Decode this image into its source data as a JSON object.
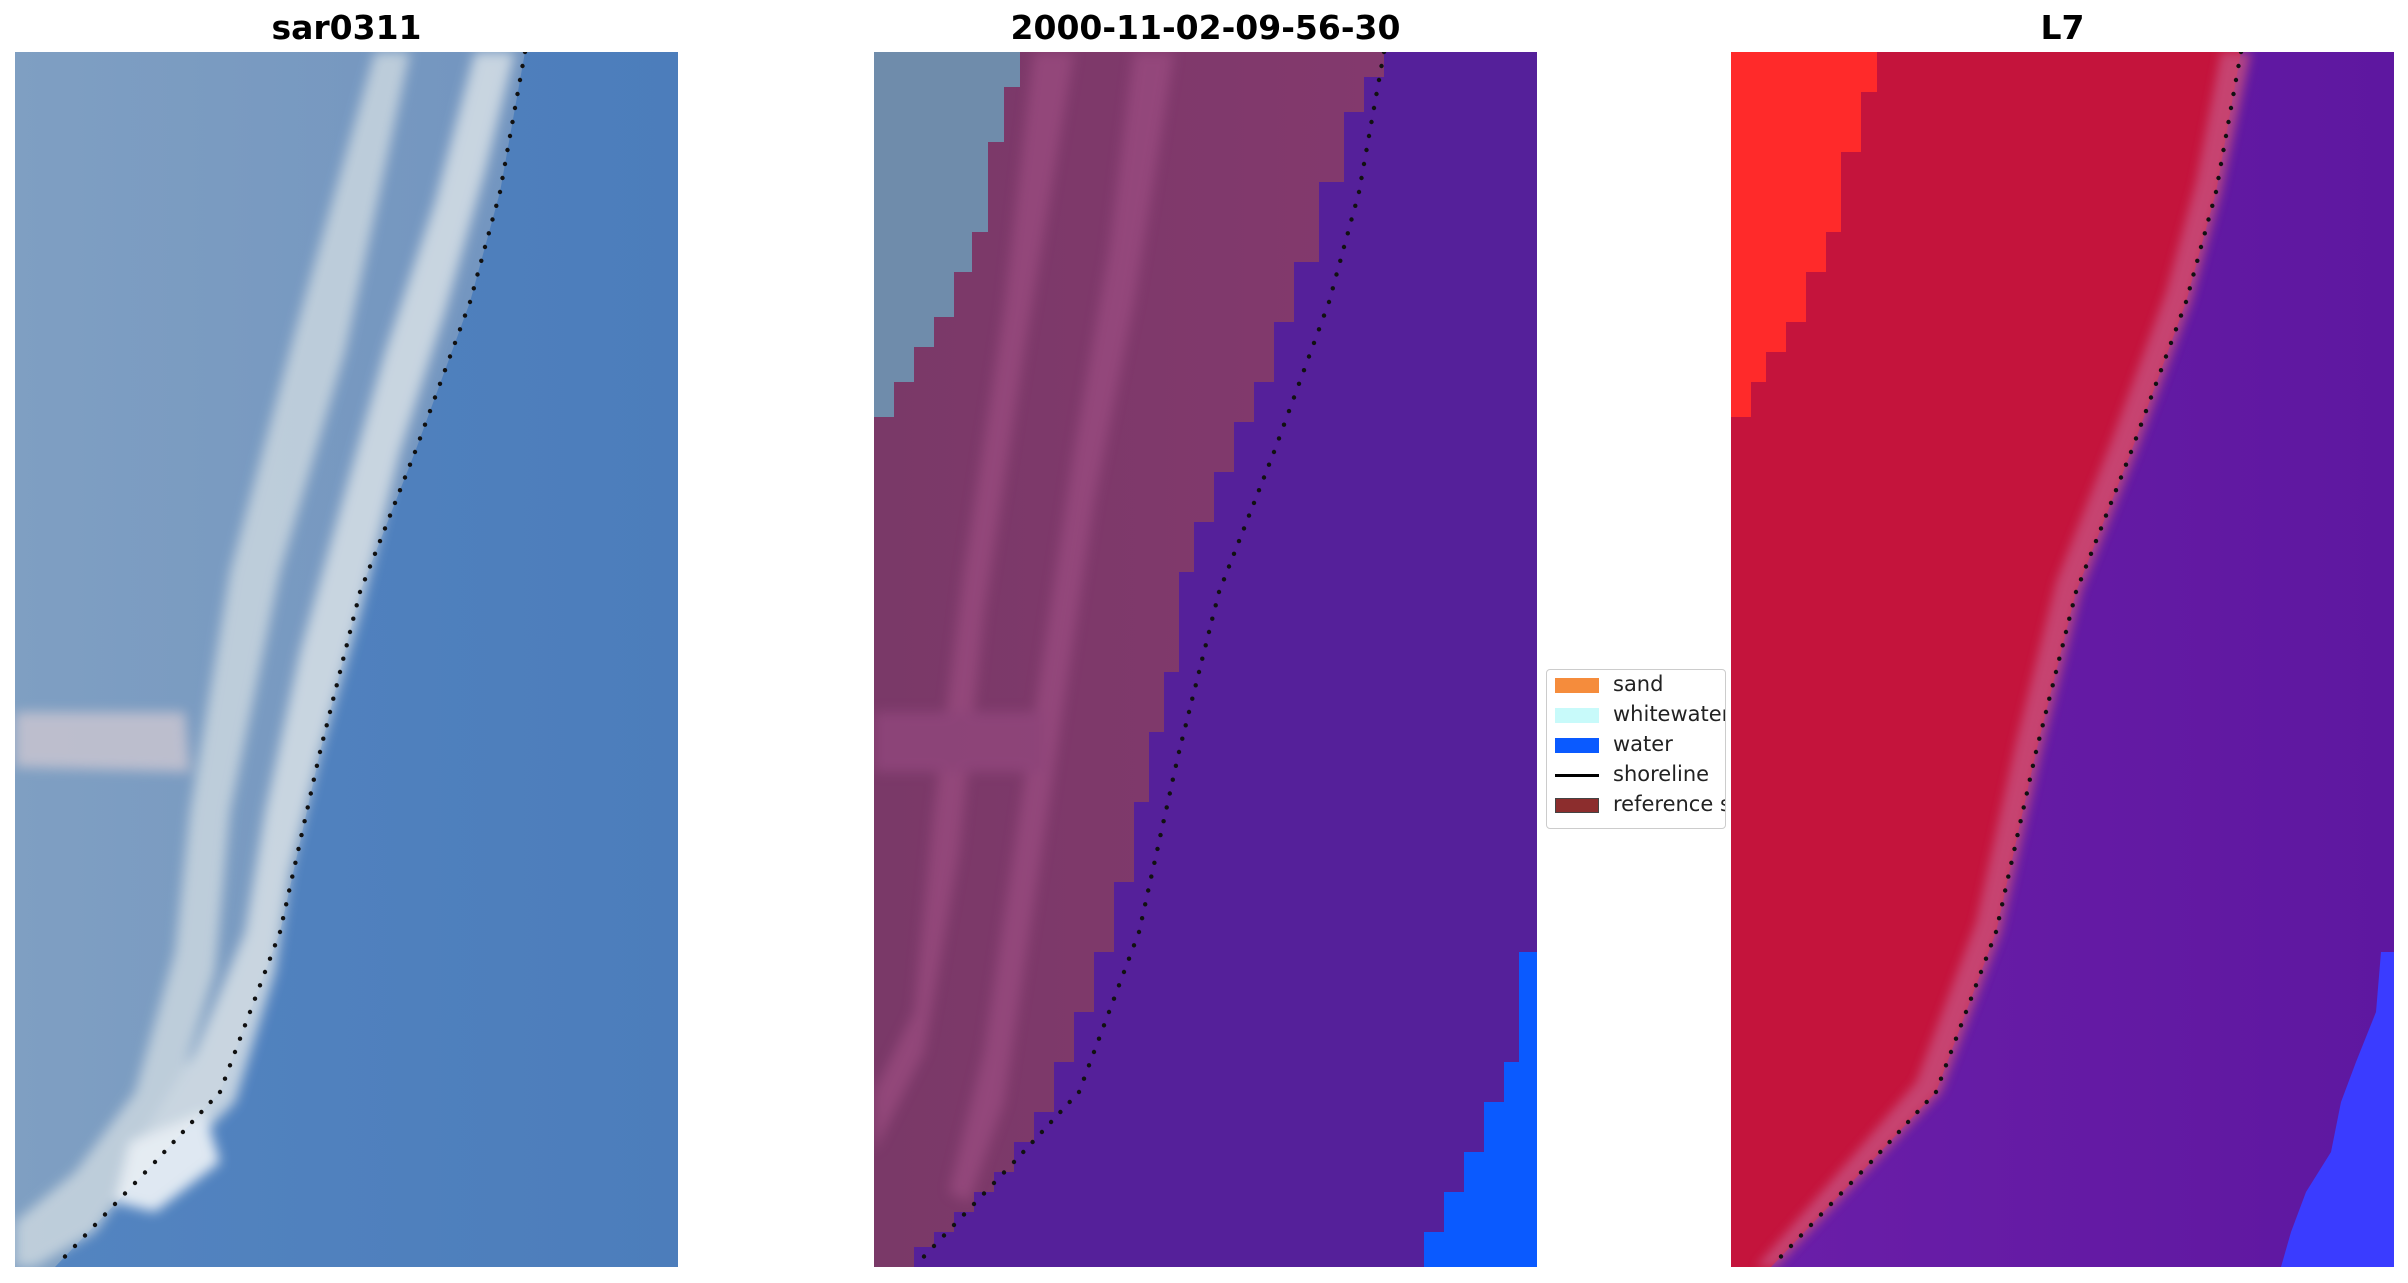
{
  "panels": [
    {
      "title": "sar0311",
      "image": "rgb-satellite-image"
    },
    {
      "title": "2000-11-02-09-56-30",
      "image": "classified-image"
    },
    {
      "title": "L7",
      "image": "false-color-image"
    }
  ],
  "legend": {
    "items": [
      {
        "label": "sand",
        "color": "#f58c3c",
        "kind": "patch"
      },
      {
        "label": "whitewater",
        "color": "#c8fafa",
        "kind": "patch"
      },
      {
        "label": "water",
        "color": "#0a5aff",
        "kind": "patch"
      },
      {
        "label": "shoreline",
        "color": "#000000",
        "kind": "line"
      },
      {
        "label": "reference s",
        "color": "#8c2d2d",
        "kind": "patch"
      }
    ]
  },
  "colors": {
    "rgb_water": "#4a7bb8",
    "rgb_land": "#7f9ec2",
    "rgb_sand_strip": "#cfd8dc",
    "class_land": "#7b3a6e",
    "class_water_bg": "#55209a",
    "class_water": "#0a5aff",
    "class_upper_left": "#6f8cab",
    "l7_land": "#c4143c",
    "l7_bright": "#ff2a2a",
    "l7_water": "#6018a0",
    "l7_blue": "#3a3cff"
  }
}
